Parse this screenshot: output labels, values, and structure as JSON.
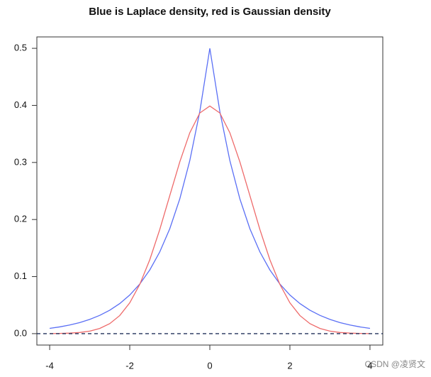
{
  "chart_data": {
    "type": "line",
    "title": "Blue is Laplace density, red is Gaussian density",
    "x": [
      -4,
      -3.75,
      -3.5,
      -3.25,
      -3,
      -2.75,
      -2.5,
      -2.25,
      -2,
      -1.75,
      -1.5,
      -1.25,
      -1,
      -0.75,
      -0.5,
      -0.25,
      0,
      0.25,
      0.5,
      0.75,
      1,
      1.25,
      1.5,
      1.75,
      2,
      2.25,
      2.5,
      2.75,
      3,
      3.25,
      3.5,
      3.75,
      4
    ],
    "series": [
      {
        "name": "Laplace density",
        "color": "#5a6ff5",
        "values": [
          0.0092,
          0.0118,
          0.0151,
          0.0194,
          0.0249,
          0.032,
          0.041,
          0.0527,
          0.0677,
          0.0869,
          0.1116,
          0.1433,
          0.1839,
          0.2362,
          0.3033,
          0.3894,
          0.5,
          0.3894,
          0.3033,
          0.2362,
          0.1839,
          0.1433,
          0.1116,
          0.0869,
          0.0677,
          0.0527,
          0.041,
          0.032,
          0.0249,
          0.0194,
          0.0151,
          0.0118,
          0.0092
        ]
      },
      {
        "name": "Gaussian density",
        "color": "#ee6a6a",
        "values": [
          0.0001,
          0.0004,
          0.0009,
          0.002,
          0.0044,
          0.0091,
          0.0175,
          0.0317,
          0.054,
          0.0863,
          0.1295,
          0.1826,
          0.242,
          0.3011,
          0.3521,
          0.3867,
          0.3989,
          0.3867,
          0.3521,
          0.3011,
          0.242,
          0.1826,
          0.1295,
          0.0863,
          0.054,
          0.0317,
          0.0175,
          0.0091,
          0.0044,
          0.002,
          0.0009,
          0.0004,
          0.0001
        ]
      }
    ],
    "hline": {
      "value": 0,
      "color": "#22305a"
    },
    "xlim": [
      -4.32,
      4.32
    ],
    "ylim": [
      -0.02,
      0.52
    ],
    "xticks": [
      -4,
      -2,
      0,
      2,
      4
    ],
    "yticks": [
      {
        "value": 0,
        "label": "0.0"
      },
      0.1,
      0.2,
      0.3,
      0.4,
      0.5
    ],
    "watermark": "CSDN @凌贤文"
  }
}
